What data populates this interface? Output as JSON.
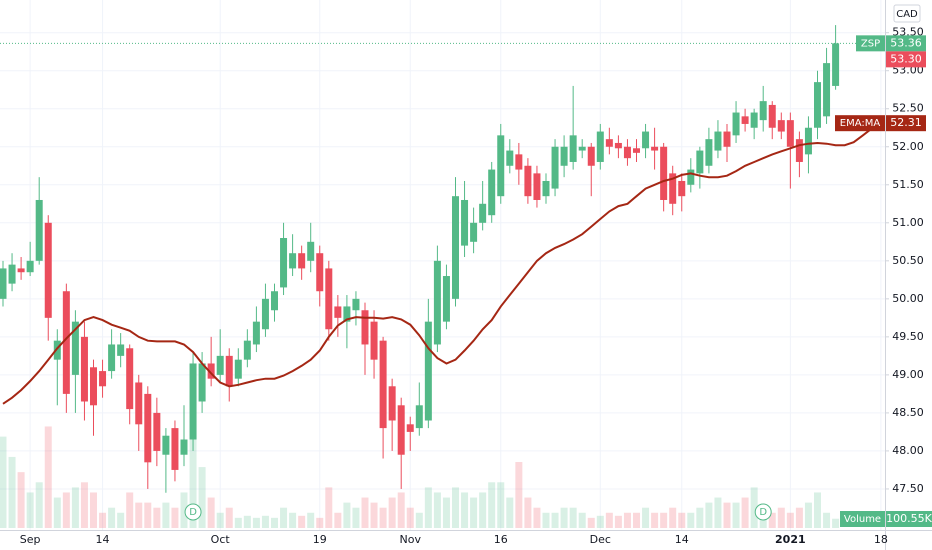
{
  "chart_data": {
    "type": "candlestick",
    "categories": [
      null,
      null,
      null,
      "Sep",
      null,
      null,
      null,
      null,
      null,
      null,
      null,
      "14",
      null,
      null,
      null,
      null,
      null,
      null,
      null,
      null,
      null,
      null,
      null,
      null,
      "Oct",
      null,
      null,
      null,
      null,
      null,
      null,
      null,
      null,
      null,
      null,
      "19",
      null,
      null,
      null,
      null,
      null,
      null,
      null,
      null,
      null,
      "Nov",
      null,
      null,
      null,
      null,
      null,
      null,
      null,
      null,
      null,
      "16",
      null,
      null,
      null,
      null,
      null,
      null,
      null,
      null,
      null,
      null,
      "Dec",
      null,
      null,
      null,
      null,
      null,
      null,
      null,
      null,
      "14",
      null,
      null,
      null,
      null,
      null,
      null,
      null,
      null,
      null,
      null,
      null,
      "2021",
      null,
      null,
      null,
      null,
      null,
      null,
      null,
      null,
      null,
      "18"
    ],
    "bold_category": "2021",
    "open": [
      50.0,
      50.2,
      50.4,
      50.35,
      50.5,
      51.0,
      49.2,
      50.1,
      49.0,
      49.5,
      49.1,
      49.05,
      49.05,
      49.25,
      49.35,
      48.9,
      48.75,
      48.5,
      47.95,
      48.3,
      47.95,
      48.15,
      48.65,
      49.15,
      49.0,
      49.25,
      48.95,
      49.2,
      49.4,
      49.6,
      49.85,
      50.15,
      50.4,
      50.6,
      50.5,
      50.6,
      50.4,
      49.9,
      49.7,
      49.85,
      49.85,
      49.7,
      49.45,
      48.85,
      48.6,
      48.35,
      48.3,
      48.4,
      49.4,
      49.7,
      50.0,
      50.7,
      50.75,
      51.0,
      51.1,
      51.35,
      51.75,
      51.9,
      51.75,
      51.65,
      51.35,
      51.45,
      51.75,
      51.8,
      51.95,
      52.0,
      51.8,
      52.1,
      52.05,
      52.0,
      51.98,
      51.98,
      52.0,
      52.0,
      51.65,
      51.55,
      51.5,
      51.65,
      51.75,
      51.95,
      52.2,
      52.15,
      52.4,
      52.25,
      52.35,
      52.55,
      52.35,
      52.35,
      52.1,
      51.9,
      52.25,
      52.4,
      52.8,
      null,
      null,
      null,
      null,
      null
    ],
    "high": [
      50.5,
      50.6,
      50.55,
      50.75,
      51.6,
      51.1,
      49.6,
      50.2,
      49.85,
      49.7,
      49.2,
      49.2,
      49.6,
      49.55,
      49.4,
      49.0,
      48.85,
      48.7,
      48.3,
      48.4,
      48.6,
      49.3,
      49.3,
      49.5,
      49.6,
      49.35,
      49.35,
      49.6,
      49.9,
      50.2,
      50.2,
      51.0,
      50.85,
      50.7,
      51.0,
      50.7,
      50.5,
      50.05,
      50.05,
      50.1,
      49.95,
      49.85,
      49.5,
      48.95,
      48.7,
      48.45,
      48.9,
      50.0,
      50.7,
      50.45,
      51.6,
      51.55,
      51.2,
      51.55,
      51.8,
      52.3,
      52.1,
      52.05,
      51.85,
      51.75,
      51.65,
      52.1,
      52.15,
      52.8,
      52.1,
      52.05,
      52.3,
      52.25,
      52.15,
      52.1,
      52.1,
      52.3,
      52.25,
      52.05,
      51.75,
      51.65,
      51.85,
      52.0,
      52.25,
      52.35,
      52.3,
      52.6,
      52.5,
      52.5,
      52.8,
      52.6,
      52.45,
      52.45,
      52.2,
      52.4,
      53.0,
      53.3,
      53.6,
      null,
      null,
      null,
      null,
      null
    ],
    "low": [
      49.9,
      50.1,
      50.25,
      50.3,
      50.45,
      49.45,
      48.6,
      48.5,
      48.5,
      48.4,
      48.2,
      48.7,
      48.95,
      49.1,
      48.35,
      48.0,
      47.5,
      47.8,
      47.45,
      47.6,
      47.8,
      48.0,
      48.5,
      48.85,
      48.9,
      48.65,
      48.85,
      49.1,
      49.3,
      49.5,
      49.7,
      50.05,
      50.3,
      50.25,
      50.35,
      49.9,
      49.45,
      49.5,
      49.35,
      49.65,
      49.0,
      48.95,
      47.9,
      48.0,
      47.5,
      48.0,
      48.2,
      48.3,
      49.3,
      49.6,
      49.9,
      50.55,
      50.6,
      50.9,
      51.0,
      51.25,
      51.65,
      51.5,
      51.25,
      51.2,
      51.25,
      51.35,
      51.6,
      51.7,
      51.85,
      51.35,
      51.7,
      51.9,
      51.85,
      51.75,
      51.8,
      51.85,
      51.7,
      51.15,
      51.1,
      51.15,
      51.4,
      51.45,
      51.65,
      51.85,
      51.8,
      52.05,
      52.2,
      52.1,
      52.2,
      52.1,
      52.1,
      51.45,
      51.6,
      51.65,
      52.1,
      52.3,
      52.75,
      null,
      null,
      null,
      null,
      null
    ],
    "close": [
      50.4,
      50.45,
      50.35,
      50.5,
      51.3,
      49.75,
      49.45,
      48.75,
      49.7,
      48.65,
      48.6,
      48.85,
      49.4,
      49.4,
      48.55,
      48.35,
      47.85,
      48.0,
      48.2,
      47.75,
      48.15,
      49.15,
      49.15,
      48.95,
      49.25,
      48.85,
      49.2,
      49.45,
      49.7,
      50.0,
      50.1,
      50.8,
      50.6,
      50.4,
      50.75,
      50.1,
      49.6,
      49.75,
      49.9,
      50.0,
      49.4,
      49.2,
      48.3,
      48.4,
      47.95,
      48.25,
      48.6,
      49.7,
      50.5,
      50.3,
      51.35,
      51.3,
      51.0,
      51.25,
      51.7,
      52.15,
      51.95,
      51.7,
      51.35,
      51.3,
      51.55,
      52.0,
      52.0,
      52.15,
      52.0,
      51.75,
      52.2,
      52.0,
      51.98,
      51.85,
      51.92,
      52.2,
      51.95,
      51.3,
      51.25,
      51.35,
      51.7,
      51.95,
      52.1,
      52.2,
      52.0,
      52.45,
      52.3,
      52.45,
      52.6,
      52.25,
      52.2,
      52.0,
      51.8,
      52.25,
      52.85,
      53.1,
      53.36,
      null,
      null,
      null,
      null,
      null
    ],
    "volume": {
      "name": "Volume",
      "value_label": "100.55K",
      "values": [
        990000,
        770000,
        605000,
        385000,
        495000,
        1100000,
        330000,
        385000,
        440000,
        495000,
        385000,
        165000,
        220000,
        165000,
        385000,
        275000,
        275000,
        220000,
        275000,
        220000,
        385000,
        1430000,
        660000,
        330000,
        165000,
        220000,
        110000,
        132000,
        110000,
        132000,
        110000,
        220000,
        165000,
        132000,
        165000,
        110000,
        440000,
        165000,
        275000,
        220000,
        330000,
        275000,
        220000,
        330000,
        385000,
        220000,
        165000,
        440000,
        385000,
        330000,
        440000,
        385000,
        330000,
        385000,
        495000,
        495000,
        330000,
        715000,
        330000,
        220000,
        165000,
        165000,
        220000,
        220000,
        165000,
        110000,
        132000,
        165000,
        132000,
        165000,
        165000,
        220000,
        165000,
        165000,
        220000,
        165000,
        165000,
        220000,
        275000,
        330000,
        275000,
        275000,
        330000,
        440000,
        220000,
        165000,
        220000,
        165000,
        220000,
        275000,
        385000,
        165000,
        100550,
        null,
        null,
        null,
        null,
        null
      ]
    },
    "ema": {
      "name": "EMA:MA",
      "color": "#a52714",
      "values": [
        48.62,
        48.7,
        48.8,
        48.92,
        49.05,
        49.2,
        49.35,
        49.48,
        49.6,
        49.72,
        49.76,
        49.72,
        49.66,
        49.62,
        49.58,
        49.5,
        49.45,
        49.44,
        49.44,
        49.44,
        49.4,
        49.3,
        49.15,
        49.02,
        48.9,
        48.85,
        48.87,
        48.9,
        48.93,
        48.95,
        48.95,
        48.99,
        49.05,
        49.12,
        49.2,
        49.32,
        49.5,
        49.65,
        49.73,
        49.76,
        49.75,
        49.75,
        49.74,
        49.76,
        49.73,
        49.66,
        49.52,
        49.35,
        49.22,
        49.15,
        49.2,
        49.32,
        49.45,
        49.6,
        49.72,
        49.9,
        50.05,
        50.2,
        50.35,
        50.5,
        50.6,
        50.67,
        50.72,
        50.78,
        50.85,
        50.95,
        51.05,
        51.15,
        51.22,
        51.25,
        51.35,
        51.45,
        51.5,
        51.55,
        51.58,
        51.63,
        51.65,
        51.62,
        51.6,
        51.6,
        51.62,
        51.68,
        51.75,
        51.8,
        51.85,
        51.9,
        51.94,
        51.98,
        52.02,
        52.04,
        52.05,
        52.04,
        52.02,
        52.02,
        52.06,
        52.15,
        52.24,
        52.31
      ]
    },
    "up_color": "#53b987",
    "down_color": "#eb4d5c",
    "ylim": [
      46.96,
      53.93
    ],
    "yticks": [
      {
        "value": 47.5,
        "label": "47.50"
      },
      {
        "value": 48.0,
        "label": "48.00"
      },
      {
        "value": 48.5,
        "label": "48.50"
      },
      {
        "value": 49.0,
        "label": "49.00"
      },
      {
        "value": 49.5,
        "label": "49.50"
      },
      {
        "value": 50.0,
        "label": "50.00"
      },
      {
        "value": 50.5,
        "label": "50.50"
      },
      {
        "value": 51.0,
        "label": "51.00"
      },
      {
        "value": 51.5,
        "label": "51.50"
      },
      {
        "value": 52.0,
        "label": "52.00"
      },
      {
        "value": 52.5,
        "label": "52.50"
      },
      {
        "value": 53.0,
        "label": "53.00"
      },
      {
        "value": 53.5,
        "label": "53.50"
      }
    ],
    "grid": true,
    "currency": "CAD",
    "price_tags": [
      {
        "label": "ZSP",
        "value": 53.36,
        "value_label": "53.36",
        "color": "#53b987"
      },
      {
        "value": 53.3,
        "value_label": "53.30",
        "color": "#eb4d5c"
      },
      {
        "label": "EMA:MA",
        "value": 52.31,
        "value_label": "52.31",
        "color": "#a52714"
      }
    ],
    "markers": [
      {
        "label": "D",
        "at": 21
      },
      {
        "label": "D",
        "at": 84
      }
    ]
  }
}
